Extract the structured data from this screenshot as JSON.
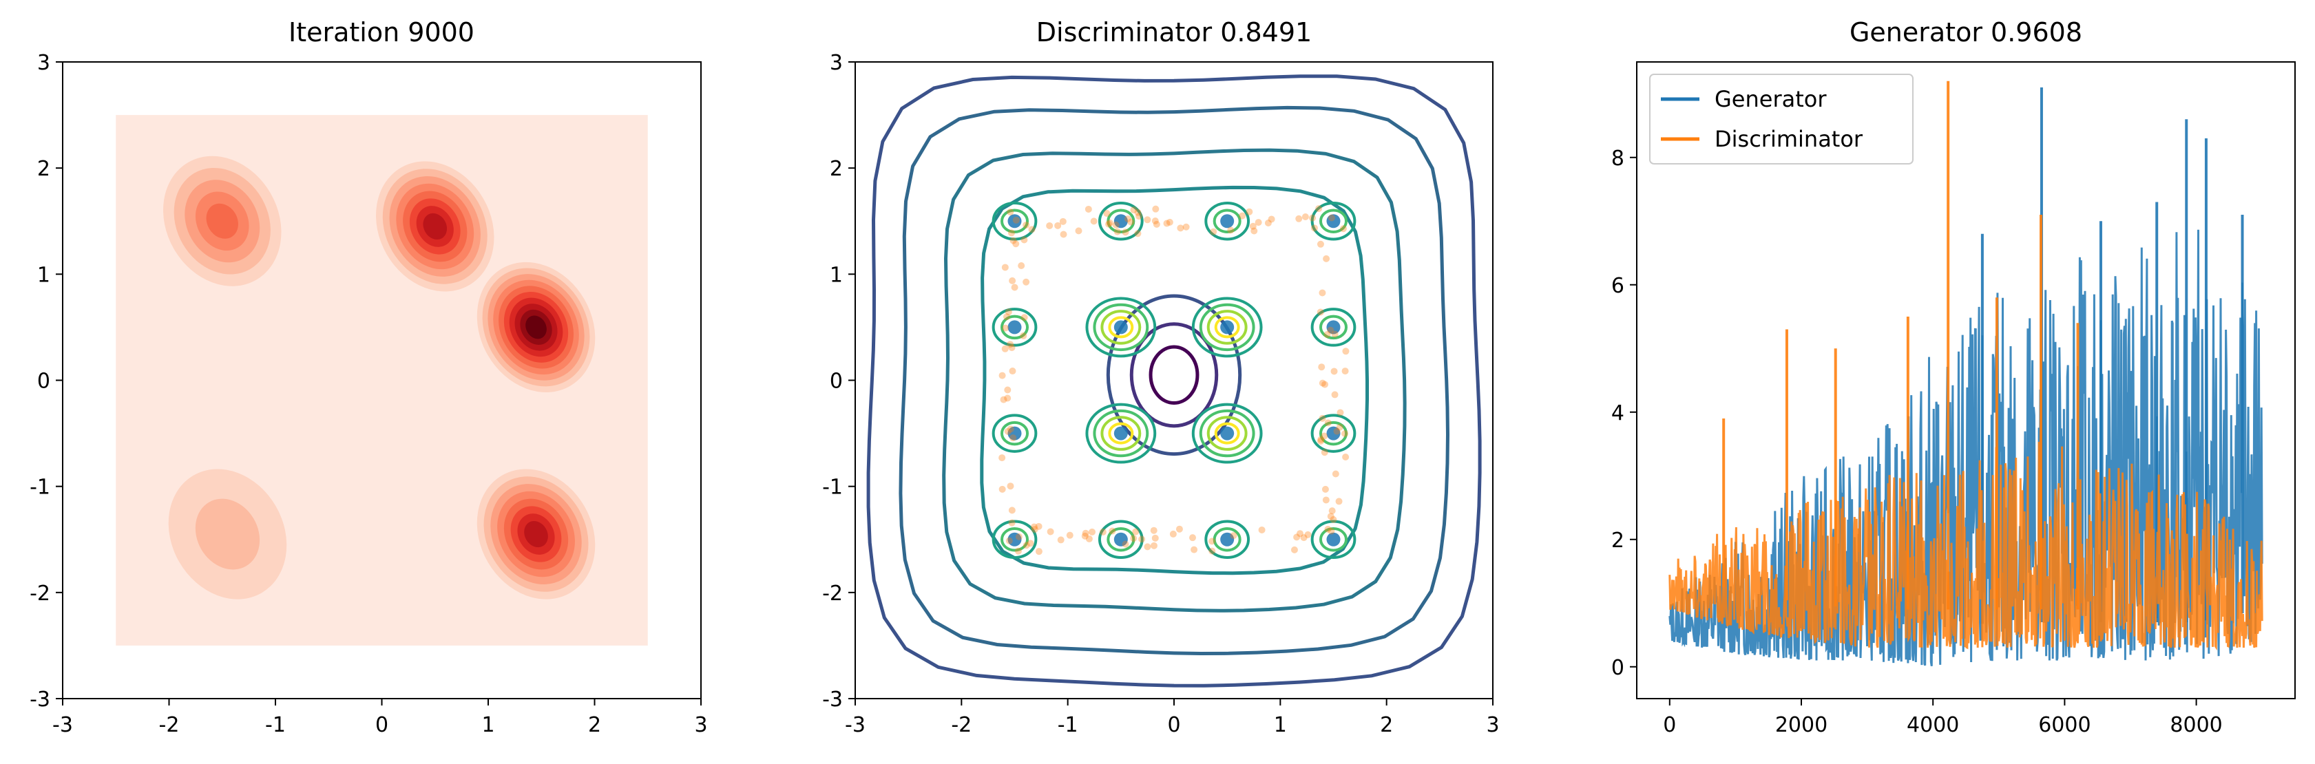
{
  "chart_data": [
    {
      "type": "heatmap",
      "title": "Iteration 9000",
      "xlim": [
        -3,
        3
      ],
      "ylim": [
        -3,
        3
      ],
      "xticks": [
        "-3",
        "-2",
        "-1",
        "0",
        "1",
        "2",
        "3"
      ],
      "yticks": [
        "-3",
        "-2",
        "-1",
        "0",
        "1",
        "2",
        "3"
      ],
      "colormap": "Reds",
      "background_color": "#fee8df",
      "density_region": {
        "x": [
          -2.5,
          2.5
        ],
        "y": [
          -2.5,
          2.5
        ]
      },
      "modes": [
        {
          "x": -1.5,
          "y": 1.5,
          "weight": 0.5
        },
        {
          "x": 0.5,
          "y": 1.45,
          "weight": 0.75
        },
        {
          "x": 1.45,
          "y": 0.5,
          "weight": 1.0
        },
        {
          "x": 1.45,
          "y": -1.45,
          "weight": 0.8
        },
        {
          "x": -1.45,
          "y": -1.45,
          "weight": 0.15
        }
      ]
    },
    {
      "type": "contour",
      "title": "Discriminator 0.8491",
      "xlim": [
        -3,
        3
      ],
      "ylim": [
        -3,
        3
      ],
      "xticks": [
        "-3",
        "-2",
        "-1",
        "0",
        "1",
        "2",
        "3"
      ],
      "yticks": [
        "-3",
        "-2",
        "-1",
        "0",
        "1",
        "2",
        "3"
      ],
      "colormap": "viridis",
      "grid_centers": [
        {
          "x": -1.5,
          "y": 1.5
        },
        {
          "x": -0.5,
          "y": 1.5
        },
        {
          "x": 0.5,
          "y": 1.5
        },
        {
          "x": 1.5,
          "y": 1.5
        },
        {
          "x": -1.5,
          "y": 0.5
        },
        {
          "x": -0.5,
          "y": 0.5
        },
        {
          "x": 0.5,
          "y": 0.5
        },
        {
          "x": 1.5,
          "y": 0.5
        },
        {
          "x": -1.5,
          "y": -0.5
        },
        {
          "x": -0.5,
          "y": -0.5
        },
        {
          "x": 0.5,
          "y": -0.5
        },
        {
          "x": 1.5,
          "y": -0.5
        },
        {
          "x": -1.5,
          "y": -1.5
        },
        {
          "x": -0.5,
          "y": -1.5
        },
        {
          "x": 0.5,
          "y": -1.5
        },
        {
          "x": 1.5,
          "y": -1.5
        }
      ],
      "generated_samples_color": "#ff7f0e",
      "real_samples_color": "#1f77b4"
    },
    {
      "type": "line",
      "title": "Generator 0.9608",
      "xlim": [
        -500,
        9500
      ],
      "ylim": [
        -0.5,
        9.5
      ],
      "xticks": [
        "0",
        "2000",
        "4000",
        "6000",
        "8000"
      ],
      "yticks": [
        "0",
        "2",
        "4",
        "6",
        "8"
      ],
      "legend_position": "top-left",
      "x_range": [
        0,
        9000
      ],
      "series": [
        {
          "name": "Generator",
          "color": "#1f77b4",
          "envelope": [
            {
              "x": 0,
              "min": 0.4,
              "max": 1.1
            },
            {
              "x": 1000,
              "min": 0.2,
              "max": 2.0
            },
            {
              "x": 2000,
              "min": 0.1,
              "max": 3.0
            },
            {
              "x": 3000,
              "min": 0.1,
              "max": 3.5
            },
            {
              "x": 4000,
              "min": 0.0,
              "max": 5.0
            },
            {
              "x": 5000,
              "min": 0.1,
              "max": 6.0
            },
            {
              "x": 6000,
              "min": 0.1,
              "max": 6.5
            },
            {
              "x": 7000,
              "min": 0.1,
              "max": 6.5
            },
            {
              "x": 8000,
              "min": 0.1,
              "max": 7.0
            },
            {
              "x": 9000,
              "min": 0.3,
              "max": 6.5
            }
          ],
          "spikes": [
            {
              "x": 5650,
              "y": 9.1
            },
            {
              "x": 7850,
              "y": 8.6
            },
            {
              "x": 8150,
              "y": 8.3
            },
            {
              "x": 7400,
              "y": 7.3
            },
            {
              "x": 4750,
              "y": 6.8
            },
            {
              "x": 6550,
              "y": 7.0
            },
            {
              "x": 8700,
              "y": 7.1
            }
          ]
        },
        {
          "name": "Discriminator",
          "color": "#ff7f0e",
          "envelope": [
            {
              "x": 0,
              "min": 0.9,
              "max": 1.8
            },
            {
              "x": 1000,
              "min": 0.6,
              "max": 2.2
            },
            {
              "x": 2000,
              "min": 0.4,
              "max": 2.6
            },
            {
              "x": 3000,
              "min": 0.3,
              "max": 3.0
            },
            {
              "x": 4000,
              "min": 0.3,
              "max": 3.2
            },
            {
              "x": 5000,
              "min": 0.3,
              "max": 3.5
            },
            {
              "x": 6000,
              "min": 0.3,
              "max": 3.6
            },
            {
              "x": 7000,
              "min": 0.3,
              "max": 3.2
            },
            {
              "x": 8000,
              "min": 0.3,
              "max": 2.8
            },
            {
              "x": 9000,
              "min": 0.3,
              "max": 2.0
            }
          ],
          "spikes": [
            {
              "x": 4230,
              "y": 9.2
            },
            {
              "x": 5640,
              "y": 7.1
            },
            {
              "x": 1780,
              "y": 5.3
            },
            {
              "x": 2520,
              "y": 5.0
            },
            {
              "x": 3620,
              "y": 5.5
            },
            {
              "x": 820,
              "y": 3.9
            },
            {
              "x": 4970,
              "y": 5.8
            },
            {
              "x": 6200,
              "y": 5.4
            }
          ]
        }
      ]
    }
  ]
}
